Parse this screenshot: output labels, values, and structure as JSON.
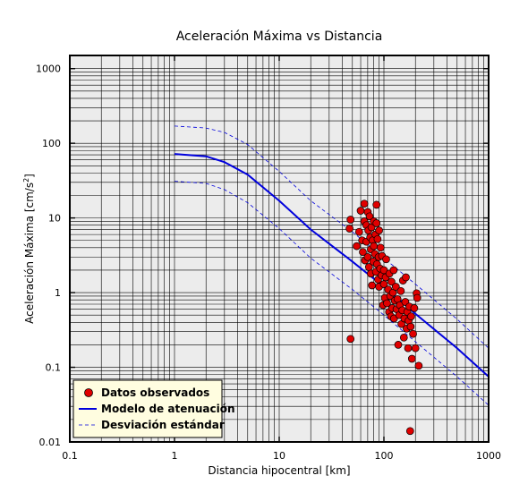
{
  "chart_data": {
    "type": "scatter",
    "title": "Aceleración Máxima vs Distancia",
    "xlabel": "Distancia hipocentral [km]",
    "ylabel_main": "Aceleración Máxima [cm/s",
    "ylabel_sup": "2",
    "ylabel_end": "]",
    "xscale": "log",
    "yscale": "log",
    "xlim": [
      0.1,
      1000
    ],
    "ylim": [
      0.01,
      1500
    ],
    "grid": true,
    "legend_position": "bottom-left",
    "x_ticks": [
      {
        "value": 0.1,
        "label": "0.1"
      },
      {
        "value": 1,
        "label": "1"
      },
      {
        "value": 10,
        "label": "10"
      },
      {
        "value": 100,
        "label": "100"
      },
      {
        "value": 1000,
        "label": "1000"
      }
    ],
    "y_ticks": [
      {
        "value": 0.01,
        "label": "0.01"
      },
      {
        "value": 0.1,
        "label": "0.1"
      },
      {
        "value": 1,
        "label": "1"
      },
      {
        "value": 10,
        "label": "10"
      },
      {
        "value": 100,
        "label": "100"
      },
      {
        "value": 1000,
        "label": "1000"
      }
    ],
    "series": [
      {
        "name": "Datos observados",
        "kind": "points",
        "color": "#e00000",
        "points": [
          [
            48,
            9.5
          ],
          [
            47,
            7.2
          ],
          [
            48,
            0.24
          ],
          [
            55,
            4.2
          ],
          [
            58,
            6.5
          ],
          [
            60,
            12.5
          ],
          [
            62,
            5.0
          ],
          [
            63,
            3.5
          ],
          [
            65,
            15.5
          ],
          [
            65,
            9.0
          ],
          [
            66,
            2.7
          ],
          [
            68,
            8.0
          ],
          [
            68,
            4.8
          ],
          [
            70,
            12.0
          ],
          [
            70,
            3.0
          ],
          [
            71,
            6.8
          ],
          [
            72,
            2.2
          ],
          [
            73,
            10.5
          ],
          [
            74,
            5.5
          ],
          [
            75,
            1.8
          ],
          [
            75,
            3.8
          ],
          [
            76,
            7.5
          ],
          [
            77,
            1.25
          ],
          [
            78,
            5.0
          ],
          [
            79,
            2.6
          ],
          [
            80,
            9.0
          ],
          [
            80,
            4.2
          ],
          [
            82,
            3.3
          ],
          [
            83,
            6.0
          ],
          [
            84,
            1.9
          ],
          [
            85,
            15.0
          ],
          [
            85,
            8.5
          ],
          [
            86,
            2.4
          ],
          [
            87,
            5.2
          ],
          [
            88,
            1.5
          ],
          [
            89,
            3.0
          ],
          [
            90,
            6.8
          ],
          [
            90,
            1.2
          ],
          [
            92,
            2.1
          ],
          [
            93,
            4.0
          ],
          [
            95,
            1.7
          ],
          [
            96,
            3.1
          ],
          [
            98,
            0.68
          ],
          [
            100,
            2.0
          ],
          [
            100,
            1.3
          ],
          [
            102,
            0.85
          ],
          [
            104,
            1.6
          ],
          [
            105,
            2.8
          ],
          [
            107,
            0.72
          ],
          [
            110,
            1.1
          ],
          [
            112,
            0.55
          ],
          [
            113,
            1.8
          ],
          [
            115,
            0.9
          ],
          [
            117,
            0.48
          ],
          [
            118,
            1.4
          ],
          [
            120,
            0.62
          ],
          [
            122,
            1.0
          ],
          [
            124,
            2.0
          ],
          [
            125,
            0.45
          ],
          [
            127,
            0.78
          ],
          [
            130,
            1.2
          ],
          [
            132,
            0.6
          ],
          [
            135,
            0.82
          ],
          [
            137,
            0.2
          ],
          [
            140,
            0.5
          ],
          [
            142,
            0.68
          ],
          [
            145,
            1.05
          ],
          [
            147,
            0.38
          ],
          [
            150,
            0.58
          ],
          [
            152,
            1.45
          ],
          [
            155,
            0.25
          ],
          [
            157,
            0.45
          ],
          [
            160,
            0.75
          ],
          [
            162,
            1.6
          ],
          [
            165,
            0.33
          ],
          [
            167,
            0.55
          ],
          [
            170,
            0.18
          ],
          [
            172,
            0.42
          ],
          [
            175,
            0.65
          ],
          [
            178,
            0.014
          ],
          [
            180,
            0.35
          ],
          [
            182,
            0.48
          ],
          [
            185,
            0.13
          ],
          [
            190,
            0.28
          ],
          [
            195,
            0.62
          ],
          [
            200,
            0.18
          ],
          [
            205,
            0.98
          ],
          [
            208,
            0.85
          ],
          [
            215,
            0.105
          ]
        ]
      },
      {
        "name": "Modelo de atenuación",
        "kind": "curve",
        "color": "#0000dd",
        "points": [
          [
            1,
            72
          ],
          [
            2,
            67
          ],
          [
            3,
            56
          ],
          [
            5,
            38
          ],
          [
            10,
            17
          ],
          [
            20,
            7.0
          ],
          [
            50,
            2.6
          ],
          [
            100,
            1.2
          ],
          [
            200,
            0.52
          ],
          [
            500,
            0.18
          ],
          [
            1000,
            0.075
          ]
        ]
      },
      {
        "name": "Desviación estándar",
        "kind": "dashed-curve",
        "color": "#0000dd",
        "upper": [
          [
            1,
            170
          ],
          [
            2,
            160
          ],
          [
            3,
            140
          ],
          [
            5,
            96
          ],
          [
            10,
            42
          ],
          [
            20,
            17
          ],
          [
            50,
            6.5
          ],
          [
            100,
            2.9
          ],
          [
            200,
            1.3
          ],
          [
            500,
            0.44
          ],
          [
            1000,
            0.18
          ]
        ],
        "lower": [
          [
            1,
            31
          ],
          [
            2,
            29
          ],
          [
            3,
            24
          ],
          [
            5,
            16
          ],
          [
            10,
            7.2
          ],
          [
            20,
            2.9
          ],
          [
            50,
            1.1
          ],
          [
            100,
            0.5
          ],
          [
            200,
            0.22
          ],
          [
            500,
            0.075
          ],
          [
            1000,
            0.031
          ]
        ]
      }
    ]
  },
  "colors": {
    "plot_bg": "#ececec",
    "legend_bg": "#fffde0",
    "grid": "#000000",
    "point": "#e00000",
    "curve": "#0000dd"
  }
}
